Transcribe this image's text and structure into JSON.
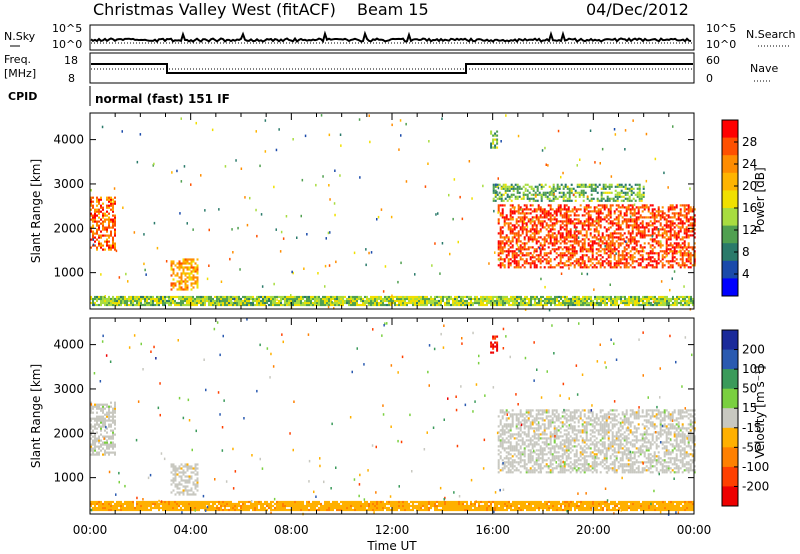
{
  "header": {
    "station": "Christmas Valley West (fitACF)",
    "beam": "Beam 15",
    "date": "04/Dec/2012"
  },
  "strip_labels": {
    "nsky": "N.Sky",
    "freq_line1": "Freq.",
    "freq_line2": "[MHz]",
    "cpid": "CPID",
    "nsearch": "N.Search",
    "nave": "Nave",
    "cpid_value": "normal (fast) 151 IF"
  },
  "noise_axis": {
    "top": "10^5",
    "bottom": "10^0"
  },
  "freq_axis": {
    "ticks": [
      "18",
      "8"
    ]
  },
  "nave_axis": {
    "ticks": [
      "60",
      "0"
    ]
  },
  "axes": {
    "ylabel": "Slant Range [km]",
    "xlabel": "Time UT",
    "yticks": [
      "4000",
      "3000",
      "2000",
      "1000"
    ],
    "xticks": [
      "00:00",
      "04:00",
      "08:00",
      "12:00",
      "16:00",
      "20:00",
      "00:00"
    ]
  },
  "power_scale": {
    "label": "Power [dB]",
    "ticks": [
      "28",
      "24",
      "20",
      "16",
      "12",
      "8",
      "4"
    ],
    "colors": [
      "#ff0000",
      "#ff5000",
      "#ff8c00",
      "#ffb400",
      "#f0e000",
      "#a8dc40",
      "#50a050",
      "#2a7a6a",
      "#1a4aaa",
      "#0000ff"
    ]
  },
  "velocity_scale": {
    "label": "Velocity [m s⁻¹]",
    "ticks": [
      "200",
      "100",
      "50",
      "15",
      "-15",
      "-50",
      "-100",
      "-200"
    ],
    "colors": [
      "#1a2a9a",
      "#2a5ab0",
      "#3a9a5a",
      "#7ad040",
      "#c8c8c0",
      "#ffb000",
      "#ff8000",
      "#ff4000",
      "#ee0000"
    ]
  },
  "chart_data": [
    {
      "type": "heatmap",
      "panel": "power",
      "xlabel": "Time UT",
      "ylabel": "Slant Range [km]",
      "xlim_hours": [
        0,
        24
      ],
      "ylim_km": [
        180,
        4600
      ],
      "colorbar": "Power [dB]",
      "colorbar_range": [
        0,
        32
      ],
      "echo_regions": [
        {
          "t_start": 0.0,
          "t_end": 1.0,
          "r_min": 1500,
          "r_max": 2700,
          "level_db": 26
        },
        {
          "t_start": 3.2,
          "t_end": 4.3,
          "r_min": 600,
          "r_max": 1300,
          "level_db": 22
        },
        {
          "t_start": 0.0,
          "t_end": 24.0,
          "r_min": 250,
          "r_max": 450,
          "level_db": 14
        },
        {
          "t_start": 16.2,
          "t_end": 24.0,
          "r_min": 1100,
          "r_max": 2500,
          "level_db": 28
        },
        {
          "t_start": 16.0,
          "t_end": 22.0,
          "r_min": 2600,
          "r_max": 3000,
          "level_db": 12
        },
        {
          "t_start": 15.9,
          "t_end": 16.2,
          "r_min": 3800,
          "r_max": 4200,
          "level_db": 12
        }
      ]
    },
    {
      "type": "heatmap",
      "panel": "velocity",
      "xlabel": "Time UT",
      "ylabel": "Slant Range [km]",
      "xlim_hours": [
        0,
        24
      ],
      "ylim_km": [
        180,
        4600
      ],
      "colorbar": "Velocity [m s⁻¹]",
      "colorbar_range": [
        -250,
        250
      ],
      "echo_regions": [
        {
          "t_start": 0.0,
          "t_end": 1.0,
          "r_min": 1500,
          "r_max": 2700,
          "velocity": 0
        },
        {
          "t_start": 3.2,
          "t_end": 4.3,
          "r_min": 600,
          "r_max": 1300,
          "velocity": 0
        },
        {
          "t_start": 0.0,
          "t_end": 24.0,
          "r_min": 250,
          "r_max": 450,
          "velocity": -60
        },
        {
          "t_start": 16.2,
          "t_end": 24.0,
          "r_min": 1100,
          "r_max": 2500,
          "velocity": 0
        },
        {
          "t_start": 15.9,
          "t_end": 16.2,
          "r_min": 3800,
          "r_max": 4200,
          "velocity": -200
        }
      ]
    }
  ]
}
